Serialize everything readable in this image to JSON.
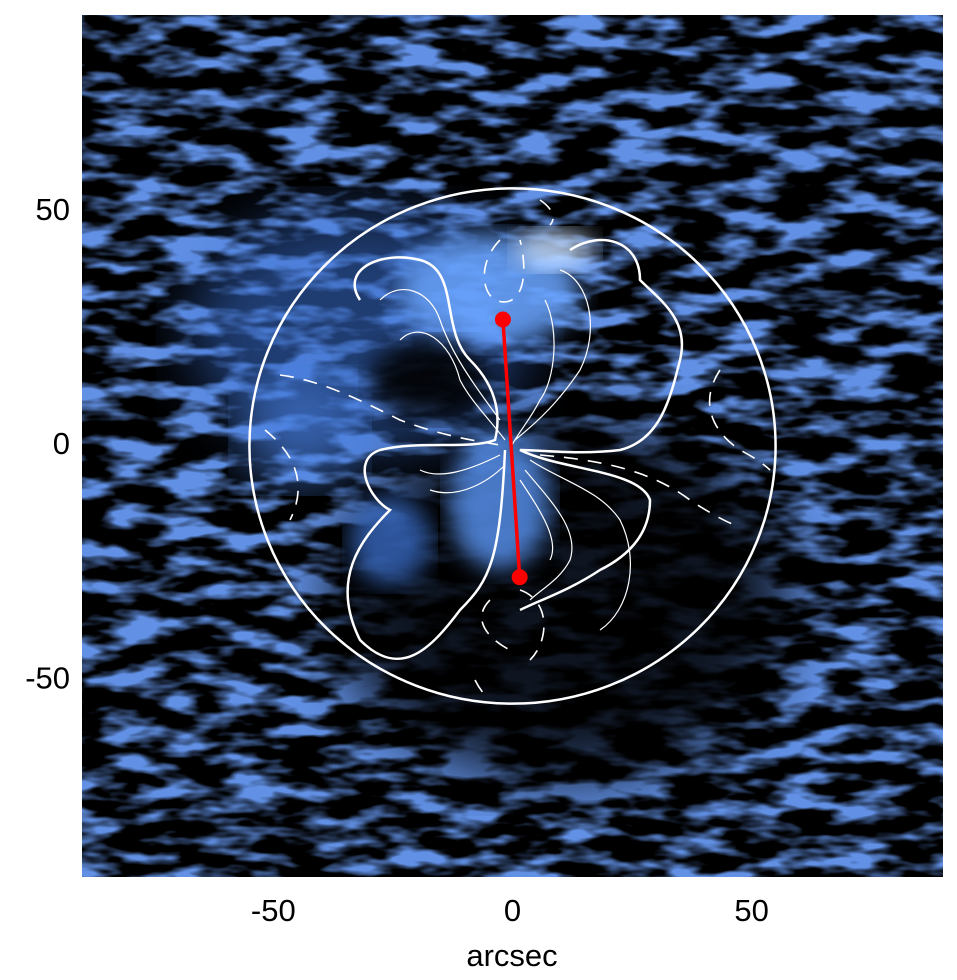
{
  "chart_data": {
    "type": "image",
    "x_label": "arcsec",
    "xlim": [
      -90,
      90
    ],
    "ylim": [
      -92,
      92
    ],
    "xticks": [
      -50,
      0,
      50
    ],
    "yticks": [
      -50,
      0,
      50
    ],
    "series": [
      {
        "color": "#ff0000",
        "x": [
          -2,
          1.5
        ],
        "y": [
          27,
          -28
        ]
      }
    ],
    "circle": {
      "radius": 55,
      "color": "#ffffff"
    }
  }
}
